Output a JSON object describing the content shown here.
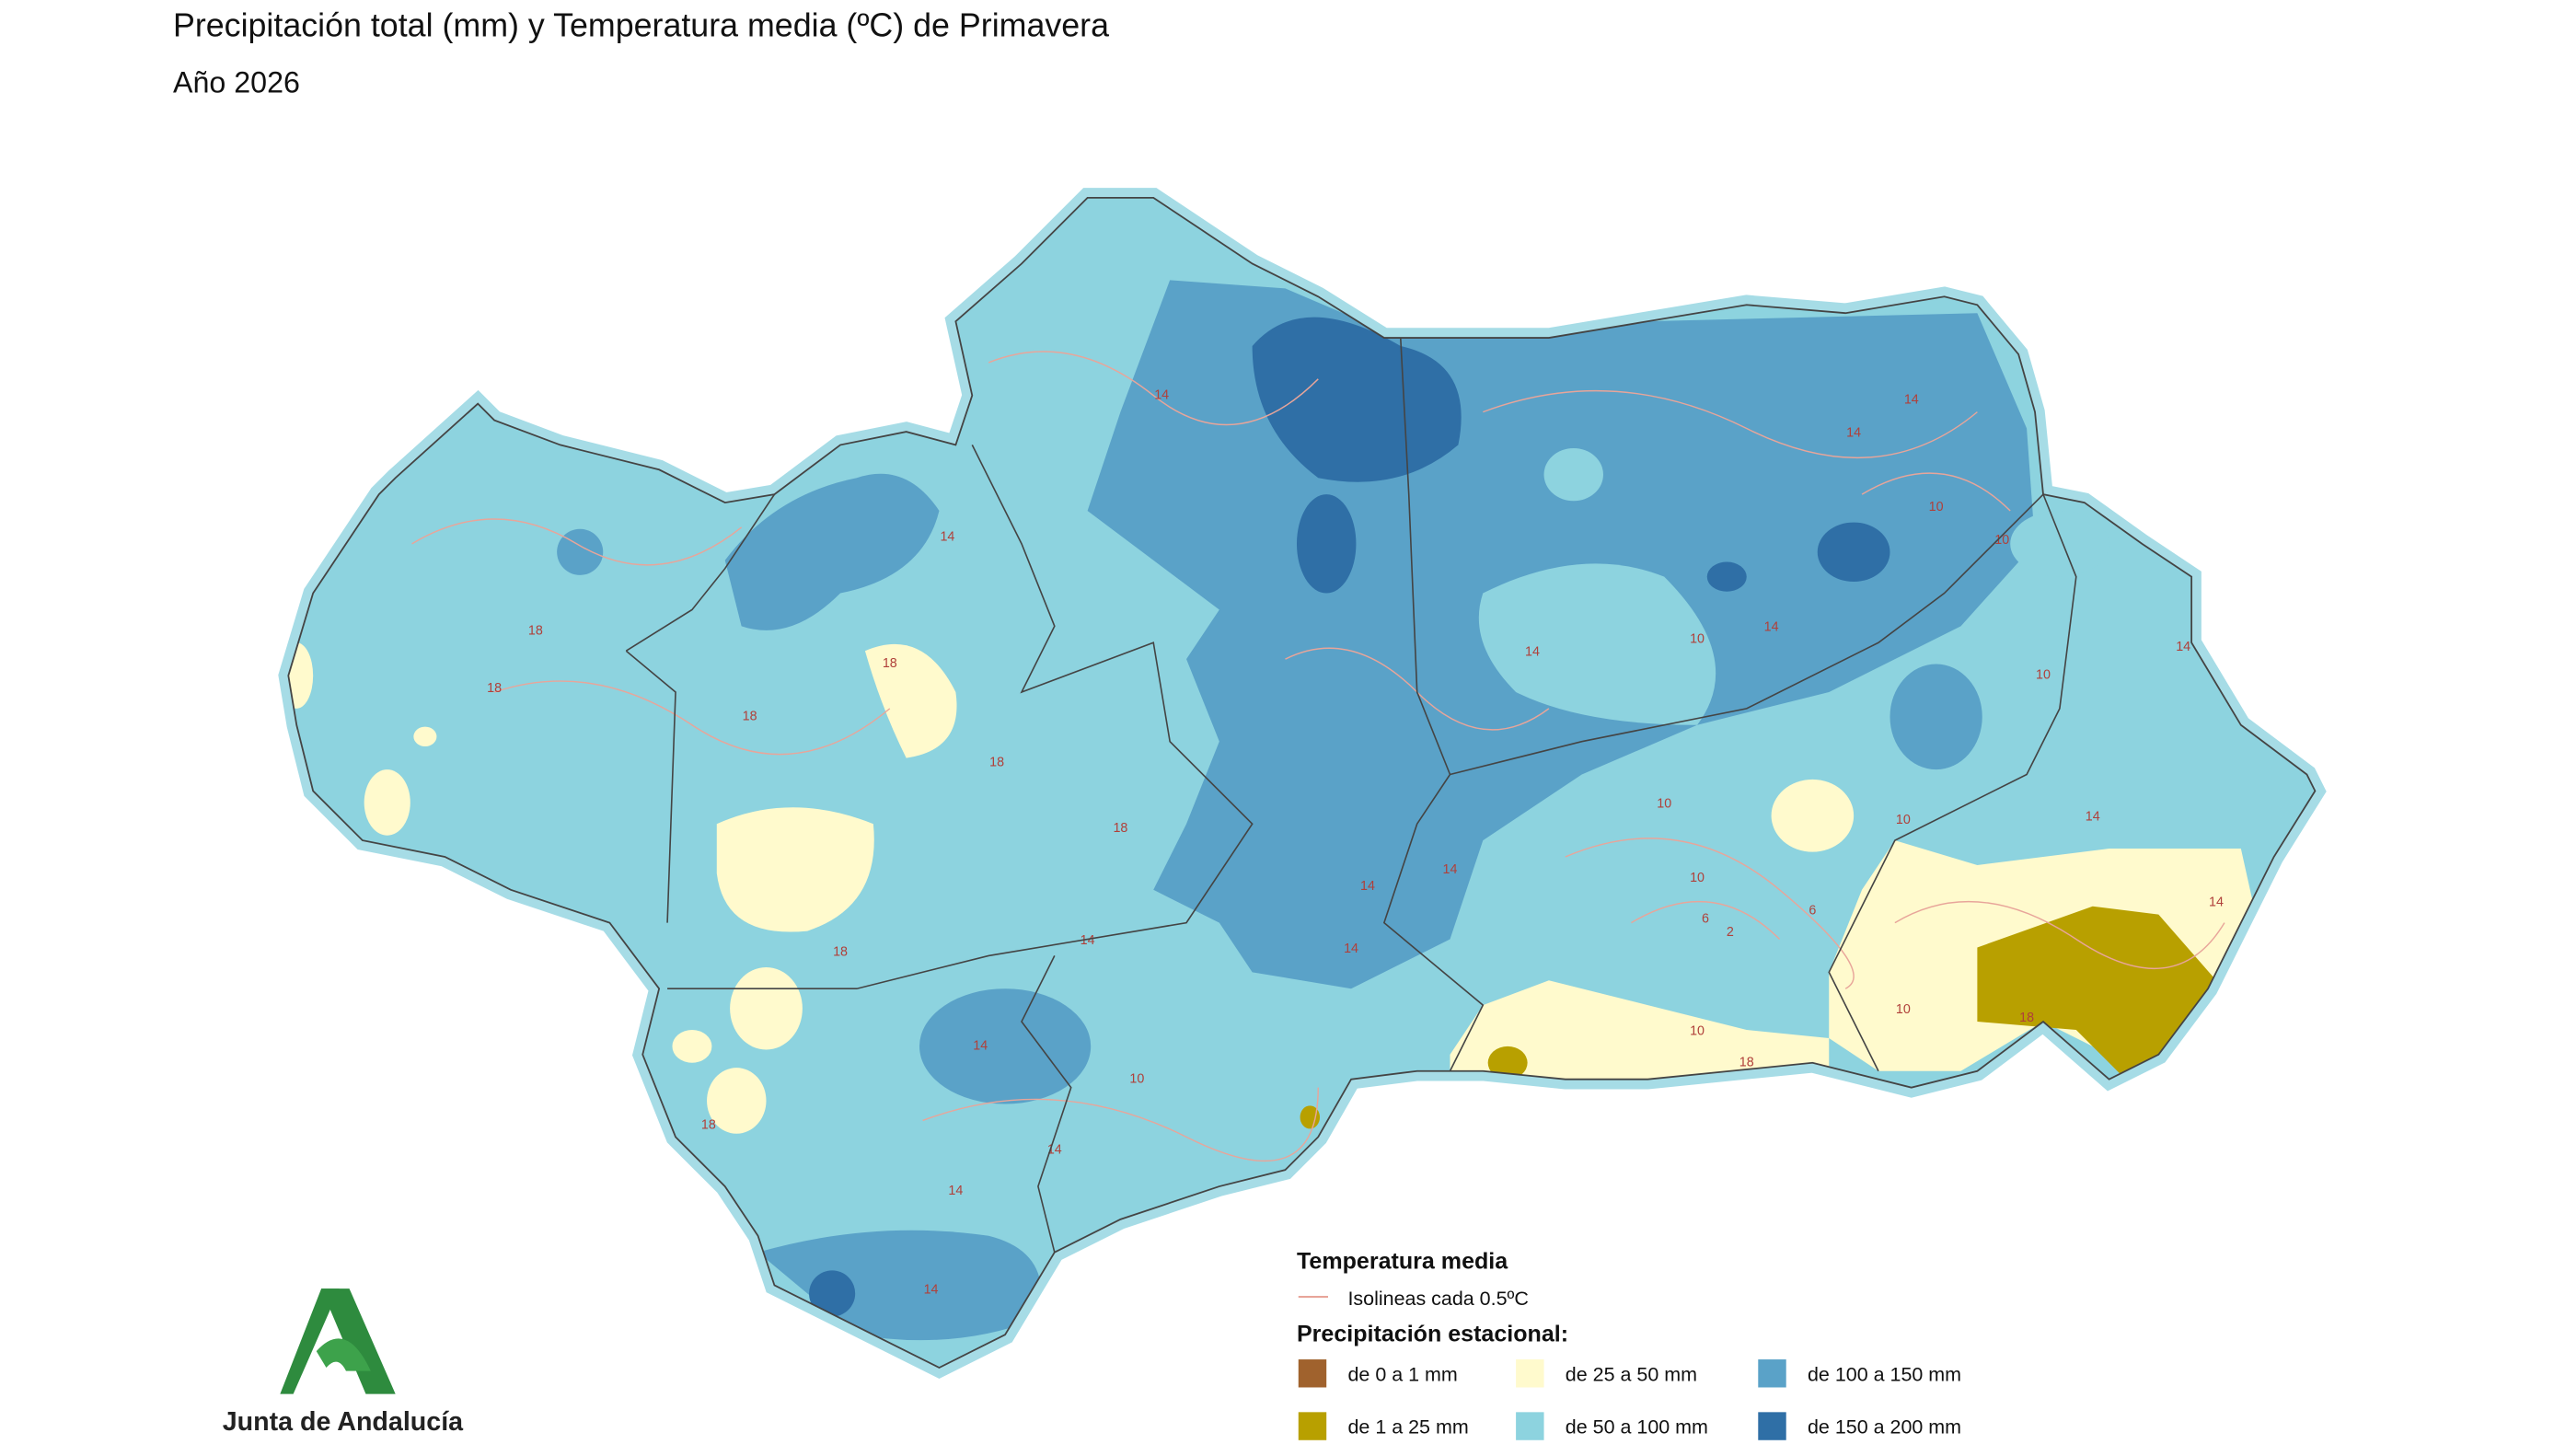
{
  "header": {
    "title": "Precipitación total (mm) y Temperatura media (ºC) de Primavera",
    "subtitle": "Año 2026"
  },
  "map": {
    "isoline_labels": [
      14,
      14,
      18,
      18,
      18,
      18,
      18,
      18,
      14,
      14,
      10,
      10,
      10,
      14,
      14,
      10,
      14,
      14,
      10,
      10,
      10,
      2,
      6,
      6,
      10,
      18,
      14,
      18,
      10,
      14,
      14,
      10,
      14,
      14,
      14,
      18,
      18,
      14,
      14,
      14
    ]
  },
  "legend": {
    "temperature_title": "Temperatura media",
    "isoline_text": "Isolineas cada 0.5ºC",
    "isoline_color": "#e8a59a",
    "precip_title": "Precipitación estacional:",
    "items": [
      {
        "label": "de 0 a 1 mm",
        "color": "#a0622d"
      },
      {
        "label": "de 1 a 25 mm",
        "color": "#b8a000"
      },
      {
        "label": "de 25 a 50 mm",
        "color": "#fffacd"
      },
      {
        "label": "de 50 a 100 mm",
        "color": "#8dd3df"
      },
      {
        "label": "de 100 a 150 mm",
        "color": "#5aa2c8"
      },
      {
        "label": "de 150 a 200 mm",
        "color": "#2f6fa6"
      }
    ]
  },
  "logo": {
    "text": "Junta de Andalucía"
  }
}
